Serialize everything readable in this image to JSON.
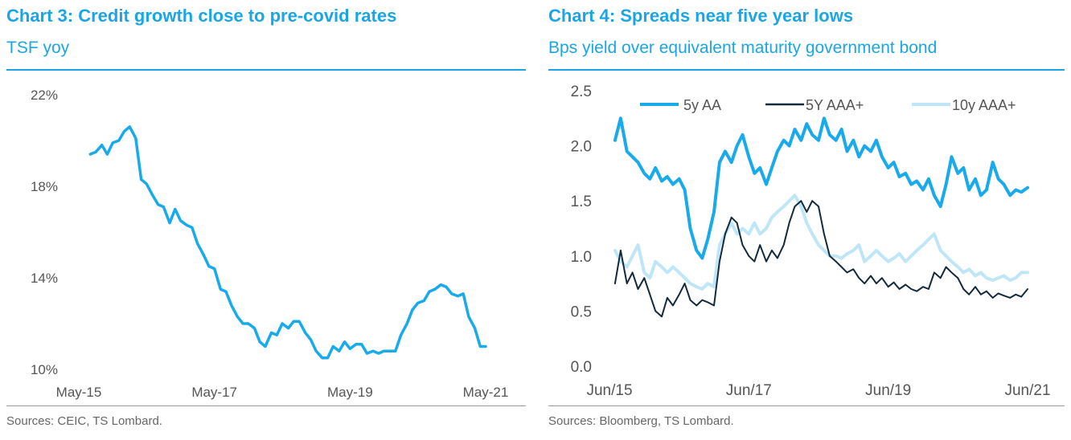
{
  "left": {
    "title": "Chart 3: Credit growth close to pre-covid rates",
    "subtitle": "TSF yoy",
    "source": "Sources: CEIC, TS Lombard."
  },
  "right": {
    "title": "Chart 4: Spreads near five year lows",
    "subtitle": "Bps yield over equivalent maturity government bond",
    "source": "Sources: Bloomberg, TS Lombard."
  },
  "colors": {
    "accent": "#1aa6e6",
    "line_blue": "#19aaeb",
    "line_dark": "#13293d",
    "line_light": "#bfe6f7"
  },
  "chart_data": [
    {
      "type": "line",
      "title": "Chart 3: Credit growth close to pre-covid rates",
      "ylabel": "TSF yoy",
      "xlabel": "",
      "ylim": [
        10,
        22
      ],
      "y_ticks": [
        "22%",
        "18%",
        "14%",
        "10%"
      ],
      "y_tick_values": [
        22,
        18,
        14,
        10
      ],
      "x_tick_labels": [
        "May-15",
        "May-17",
        "May-19",
        "May-21"
      ],
      "x_tick_values": [
        2015.33,
        2017.33,
        2019.33,
        2021.33
      ],
      "xlim": [
        2015.33,
        2021.33
      ],
      "series": [
        {
          "name": "TSF yoy",
          "x": [
            2015.5,
            2015.58,
            2015.67,
            2015.75,
            2015.83,
            2015.92,
            2016.0,
            2016.08,
            2016.17,
            2016.25,
            2016.33,
            2016.42,
            2016.5,
            2016.58,
            2016.67,
            2016.75,
            2016.83,
            2016.92,
            2017.0,
            2017.08,
            2017.17,
            2017.25,
            2017.33,
            2017.42,
            2017.5,
            2017.58,
            2017.67,
            2017.75,
            2017.83,
            2017.92,
            2018.0,
            2018.08,
            2018.17,
            2018.25,
            2018.33,
            2018.42,
            2018.5,
            2018.58,
            2018.67,
            2018.75,
            2018.83,
            2018.92,
            2019.0,
            2019.08,
            2019.17,
            2019.25,
            2019.33,
            2019.42,
            2019.5,
            2019.58,
            2019.67,
            2019.75,
            2019.83,
            2019.92,
            2020.0,
            2020.08,
            2020.17,
            2020.25,
            2020.33,
            2020.42,
            2020.5,
            2020.58,
            2020.67,
            2020.75,
            2020.83,
            2020.92,
            2021.0,
            2021.08,
            2021.17,
            2021.25,
            2021.33
          ],
          "values": [
            19.4,
            19.5,
            19.8,
            19.4,
            19.9,
            20.0,
            20.4,
            20.6,
            20.1,
            18.3,
            18.1,
            17.6,
            17.2,
            17.1,
            16.4,
            17.0,
            16.5,
            16.3,
            16.2,
            15.5,
            15.0,
            14.5,
            14.4,
            13.5,
            13.4,
            12.8,
            12.3,
            12.0,
            12.0,
            11.8,
            11.2,
            11.0,
            11.6,
            11.5,
            12.0,
            11.8,
            12.1,
            12.1,
            11.6,
            11.3,
            10.8,
            10.5,
            10.5,
            11.0,
            10.8,
            11.2,
            10.9,
            11.1,
            11.1,
            10.7,
            10.8,
            10.7,
            10.8,
            10.8,
            10.8,
            11.5,
            12.0,
            12.6,
            12.9,
            13.0,
            13.4,
            13.5,
            13.7,
            13.6,
            13.3,
            13.2,
            13.3,
            12.3,
            11.8,
            11.0,
            11.0
          ]
        }
      ]
    },
    {
      "type": "line",
      "title": "Chart 4: Spreads near five year lows",
      "ylabel": "Bps yield over equivalent maturity government bond",
      "xlabel": "",
      "ylim": [
        0.0,
        2.5
      ],
      "y_ticks": [
        "2.5",
        "2.0",
        "1.5",
        "1.0",
        "0.5",
        "0.0"
      ],
      "y_tick_values": [
        2.5,
        2.0,
        1.5,
        1.0,
        0.5,
        0.0
      ],
      "x_tick_labels": [
        "Jun/15",
        "Jun/17",
        "Jun/19",
        "Jun/21"
      ],
      "x_tick_values": [
        2015.42,
        2017.42,
        2019.42,
        2021.42
      ],
      "xlim": [
        2015.42,
        2021.42
      ],
      "legend": "top",
      "x": [
        2015.5,
        2015.58,
        2015.67,
        2015.75,
        2015.83,
        2015.92,
        2016.0,
        2016.08,
        2016.17,
        2016.25,
        2016.33,
        2016.42,
        2016.5,
        2016.58,
        2016.67,
        2016.75,
        2016.83,
        2016.92,
        2017.0,
        2017.08,
        2017.17,
        2017.25,
        2017.33,
        2017.42,
        2017.5,
        2017.58,
        2017.67,
        2017.75,
        2017.83,
        2017.92,
        2018.0,
        2018.08,
        2018.17,
        2018.25,
        2018.33,
        2018.42,
        2018.5,
        2018.58,
        2018.67,
        2018.75,
        2018.83,
        2018.92,
        2019.0,
        2019.08,
        2019.17,
        2019.25,
        2019.33,
        2019.42,
        2019.5,
        2019.58,
        2019.67,
        2019.75,
        2019.83,
        2019.92,
        2020.0,
        2020.08,
        2020.17,
        2020.25,
        2020.33,
        2020.42,
        2020.5,
        2020.58,
        2020.67,
        2020.75,
        2020.83,
        2020.92,
        2021.0,
        2021.08,
        2021.17,
        2021.25,
        2021.33,
        2021.42
      ],
      "series": [
        {
          "name": "5y AA",
          "values": [
            2.05,
            2.25,
            1.95,
            1.9,
            1.85,
            1.75,
            1.7,
            1.8,
            1.68,
            1.72,
            1.65,
            1.7,
            1.6,
            1.25,
            1.05,
            0.98,
            1.15,
            1.4,
            1.85,
            1.95,
            1.85,
            2.0,
            2.1,
            1.9,
            1.75,
            1.8,
            1.65,
            1.8,
            1.95,
            2.05,
            2.0,
            2.15,
            2.05,
            2.2,
            2.1,
            2.05,
            2.25,
            2.1,
            2.05,
            2.15,
            1.95,
            2.05,
            1.9,
            2.0,
            1.95,
            2.05,
            1.9,
            1.8,
            1.85,
            1.72,
            1.75,
            1.65,
            1.68,
            1.6,
            1.7,
            1.55,
            1.45,
            1.65,
            1.9,
            1.75,
            1.8,
            1.6,
            1.7,
            1.55,
            1.6,
            1.85,
            1.7,
            1.65,
            1.55,
            1.6,
            1.58,
            1.62
          ]
        },
        {
          "name": "5Y AAA+",
          "values": [
            0.75,
            1.05,
            0.75,
            0.85,
            0.7,
            0.8,
            0.65,
            0.5,
            0.45,
            0.62,
            0.55,
            0.65,
            0.75,
            0.6,
            0.55,
            0.6,
            0.58,
            0.55,
            0.95,
            1.2,
            1.35,
            1.3,
            1.1,
            1.0,
            0.95,
            1.1,
            0.95,
            1.05,
            0.98,
            1.1,
            1.3,
            1.45,
            1.5,
            1.4,
            1.5,
            1.45,
            1.2,
            1.0,
            0.95,
            0.9,
            0.85,
            0.88,
            0.8,
            0.75,
            0.82,
            0.75,
            0.8,
            0.72,
            0.76,
            0.7,
            0.74,
            0.7,
            0.68,
            0.72,
            0.7,
            0.85,
            0.8,
            0.9,
            0.85,
            0.8,
            0.7,
            0.65,
            0.72,
            0.65,
            0.68,
            0.62,
            0.66,
            0.64,
            0.62,
            0.65,
            0.63,
            0.7
          ]
        },
        {
          "name": "10y AAA+",
          "values": [
            1.05,
            0.95,
            0.9,
            1.0,
            1.1,
            0.85,
            0.8,
            0.95,
            0.9,
            0.85,
            0.9,
            0.85,
            0.8,
            0.75,
            0.72,
            0.7,
            0.75,
            0.72,
            1.1,
            1.2,
            1.3,
            1.2,
            1.25,
            1.2,
            1.3,
            1.2,
            1.25,
            1.35,
            1.4,
            1.45,
            1.5,
            1.55,
            1.45,
            1.3,
            1.2,
            1.1,
            1.05,
            1.0,
            1.0,
            0.98,
            1.02,
            1.05,
            1.1,
            0.95,
            1.0,
            1.05,
            1.0,
            0.95,
            0.98,
            1.02,
            0.95,
            1.0,
            1.05,
            1.1,
            1.15,
            1.2,
            1.05,
            1.0,
            0.95,
            0.9,
            0.85,
            0.88,
            0.82,
            0.85,
            0.8,
            0.78,
            0.8,
            0.82,
            0.78,
            0.8,
            0.85,
            0.85
          ]
        }
      ]
    }
  ]
}
